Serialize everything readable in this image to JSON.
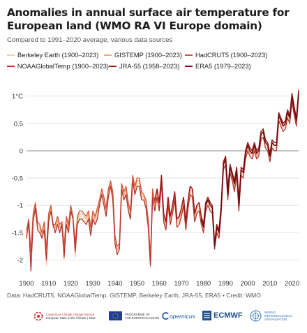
{
  "header": {
    "title": "Anomalies in annual surface air temperature for European land (WMO RA VI Europe domain)",
    "subtitle": "Compared to 1991–2020 average, various data sources"
  },
  "footer": {
    "source": "Data: HadCRUT5, NOAAGlobalTemp, GISTEMP, Berkeley Earth, JRA-55, ERA5 • Credit: WMO",
    "logos": {
      "c3s_line1": "Copernicus Climate Change Service",
      "c3s_line2": "European State of the Climate | 2023",
      "eu_line1": "PROGRAMME OF",
      "eu_line2": "THE EUROPEAN UNION",
      "copernicus": "opernicus",
      "ecmwf": "ECMWF",
      "wmo_line1": "WORLD",
      "wmo_line2": "METEOROLOGICAL",
      "wmo_line3": "ORGANIZATION"
    }
  },
  "colors": {
    "berkeley": "#f6cfa8",
    "gistemp": "#eda77a",
    "hadcrut": "#d4543a",
    "noaa": "#b5322c",
    "jra": "#9b1b1e",
    "era5": "#6b0b12"
  },
  "chart_data": {
    "type": "line",
    "title": "Anomalies in annual surface air temperature for European land (WMO RA VI Europe domain)",
    "subtitle": "Compared to 1991–2020 average, various data sources",
    "xlabel": "",
    "ylabel": "",
    "xlim": [
      1900,
      2023
    ],
    "ylim": [
      -2.3,
      1.2
    ],
    "xticks": [
      1900,
      1910,
      1920,
      1930,
      1940,
      1950,
      1960,
      1970,
      1980,
      1990,
      2000,
      2010,
      2020
    ],
    "yticks": [
      -2,
      -1.5,
      -1,
      -0.5,
      0,
      0.5,
      1
    ],
    "ytick_labels": [
      "-2",
      "-1.5",
      "-1",
      "-0.5",
      "0",
      "0.5",
      "1°C"
    ],
    "grid": "horizontal",
    "legend_position": "top",
    "series": [
      {
        "name": "Berkeley Earth (1900–2023)",
        "key": "berkeley",
        "start": 1900,
        "values": [
          -1.55,
          -1.3,
          -2.15,
          -1.25,
          -1.05,
          -1.4,
          -1.45,
          -1.55,
          -1.4,
          -2.1,
          -1.25,
          -1.05,
          -1.3,
          -1.45,
          -1.3,
          -1.45,
          -1.3,
          -2.0,
          -1.3,
          -1.45,
          -1.05,
          -1.2,
          -1.95,
          -1.3,
          -1.2,
          -1.2,
          -1.25,
          -1.3,
          -1.2,
          -1.5,
          -1.2,
          -1.3,
          -1.2,
          -0.95,
          -0.75,
          -0.95,
          -1.15,
          -0.8,
          -0.6,
          -0.85,
          -1.65,
          -1.85,
          -1.75,
          -0.65,
          -0.85,
          -0.75,
          -1.05,
          -1.2,
          -0.5,
          -0.75,
          -0.6,
          -0.6,
          -0.85,
          -0.85,
          -1.0,
          -1.35,
          -2.15,
          -0.8,
          -1.05,
          -0.8,
          -1.05,
          -0.55,
          -1.25,
          -1.4,
          -0.95,
          -1.3,
          -1.1,
          -0.85,
          -1.35,
          -1.3,
          -1.15,
          -0.95,
          -1.4,
          -1.0,
          -0.75,
          -0.8,
          -1.25,
          -1.1,
          -1.05,
          -1.3,
          -1.45,
          -1.05,
          -0.95,
          -1.05,
          -1.1,
          -1.8,
          -1.45,
          -1.55,
          -1.1,
          -0.3,
          -0.2,
          -0.85,
          -0.35,
          -0.5,
          -0.7,
          -0.4,
          -1.05,
          -0.4,
          -0.45,
          -0.1,
          0.05,
          -0.05,
          -0.1,
          0.05,
          -0.1,
          -0.05,
          0.25,
          0.3,
          0.1,
          0.05,
          -0.15,
          0.1,
          0.05,
          0.05,
          0.6,
          0.5,
          0.4,
          0.45,
          0.65,
          0.55,
          0.95,
          0.7,
          0.5,
          1.15
        ]
      },
      {
        "name": "GISTEMP (1900–2023)",
        "key": "gistemp",
        "start": 1900,
        "values": [
          -1.5,
          -1.35,
          -1.95,
          -1.2,
          -1.0,
          -1.35,
          -1.4,
          -1.6,
          -1.35,
          -1.9,
          -1.2,
          -1.0,
          -1.4,
          -1.4,
          -1.25,
          -1.4,
          -1.35,
          -1.85,
          -1.25,
          -1.4,
          -1.0,
          -1.25,
          -1.8,
          -1.25,
          -1.15,
          -1.15,
          -1.2,
          -1.25,
          -1.15,
          -1.45,
          -1.15,
          -1.25,
          -1.1,
          -0.95,
          -0.7,
          -0.9,
          -1.1,
          -0.75,
          -0.6,
          -0.8,
          -1.6,
          -1.8,
          -1.75,
          -0.65,
          -0.8,
          -0.7,
          -1.0,
          -1.15,
          -0.45,
          -0.7,
          -0.55,
          -0.55,
          -0.8,
          -0.85,
          -0.95,
          -1.3,
          -2.05,
          -0.75,
          -1.0,
          -0.75,
          -1.0,
          -0.5,
          -1.2,
          -1.35,
          -0.9,
          -1.25,
          -1.05,
          -0.8,
          -1.3,
          -1.25,
          -1.1,
          -0.9,
          -1.35,
          -0.95,
          -0.7,
          -0.75,
          -1.2,
          -1.05,
          -1.0,
          -1.25,
          -1.4,
          -1.0,
          -0.9,
          -1.0,
          -1.05,
          -1.75,
          -1.4,
          -1.5,
          -1.05,
          -0.25,
          -0.2,
          -0.8,
          -0.3,
          -0.45,
          -0.65,
          -0.35,
          -1.0,
          -0.35,
          -0.4,
          -0.05,
          0.1,
          -0.05,
          -0.05,
          0.05,
          -0.1,
          -0.05,
          0.3,
          0.35,
          0.15,
          0.1,
          -0.1,
          0.15,
          0.1,
          0.1,
          0.65,
          0.55,
          0.45,
          0.5,
          0.7,
          0.6,
          1.0,
          0.75,
          0.55,
          1.1
        ]
      },
      {
        "name": "HadCRUT5 (1900–2023)",
        "key": "hadcrut",
        "start": 1900,
        "values": [
          -1.45,
          -1.25,
          -1.85,
          -1.15,
          -0.95,
          -1.3,
          -1.35,
          -1.5,
          -1.3,
          -1.8,
          -1.15,
          -1.0,
          -1.35,
          -1.35,
          -1.2,
          -1.35,
          -1.3,
          -1.75,
          -1.2,
          -1.35,
          -1.0,
          -1.2,
          -1.7,
          -1.2,
          -1.1,
          -1.1,
          -1.15,
          -1.2,
          -1.1,
          -1.4,
          -1.1,
          -1.2,
          -1.05,
          -0.9,
          -0.7,
          -0.85,
          -1.05,
          -0.7,
          -0.55,
          -0.75,
          -1.55,
          -1.75,
          -1.7,
          -0.6,
          -0.75,
          -0.65,
          -0.95,
          -1.1,
          -0.45,
          -0.65,
          -0.5,
          -0.5,
          -0.75,
          -0.8,
          -0.9,
          -1.25,
          -1.95,
          -0.7,
          -0.95,
          -0.7,
          -0.95,
          -0.45,
          -1.15,
          -1.3,
          -0.85,
          -1.2,
          -1.0,
          -0.75,
          -1.25,
          -1.2,
          -1.05,
          -0.85,
          -1.3,
          -0.9,
          -0.65,
          -0.7,
          -1.15,
          -1.0,
          -0.95,
          -1.2,
          -1.35,
          -0.95,
          -0.85,
          -0.95,
          -1.0,
          -1.7,
          -1.35,
          -1.45,
          -1.0,
          -0.25,
          -0.15,
          -0.75,
          -0.3,
          -0.45,
          -0.6,
          -0.35,
          -0.95,
          -0.35,
          -0.4,
          -0.05,
          0.1,
          0.0,
          -0.05,
          0.1,
          -0.05,
          0.0,
          0.3,
          0.35,
          0.15,
          0.1,
          -0.1,
          0.15,
          0.1,
          0.1,
          0.65,
          0.55,
          0.45,
          0.5,
          0.7,
          0.6,
          1.0,
          0.75,
          0.55,
          1.05
        ]
      },
      {
        "name": "NOAAGlobalTemp (1900–2023)",
        "key": "noaa",
        "start": 1900,
        "values": [
          -1.6,
          -1.3,
          -2.2,
          -1.3,
          -1.05,
          -1.45,
          -1.5,
          -1.6,
          -1.45,
          -2.0,
          -1.3,
          -1.1,
          -1.35,
          -1.5,
          -1.35,
          -1.5,
          -1.35,
          -1.95,
          -1.35,
          -1.5,
          -1.1,
          -1.25,
          -1.85,
          -1.35,
          -1.25,
          -1.25,
          -1.3,
          -1.35,
          -1.25,
          -1.55,
          -1.25,
          -1.35,
          -1.25,
          -1.0,
          -0.8,
          -1.0,
          -1.2,
          -0.85,
          -0.65,
          -0.9,
          -1.7,
          -1.9,
          -1.8,
          -0.7,
          -0.9,
          -0.8,
          -1.1,
          -1.25,
          -0.55,
          -0.8,
          -0.65,
          -0.65,
          -0.9,
          -0.9,
          -1.05,
          -1.4,
          -2.1,
          -0.85,
          -1.1,
          -0.85,
          -1.1,
          -0.6,
          -1.3,
          -1.45,
          -1.0,
          -1.35,
          -1.15,
          -0.9,
          -1.4,
          -1.35,
          -1.2,
          -1.0,
          -1.45,
          -1.05,
          -0.8,
          -0.85,
          -1.3,
          -1.15,
          -1.1,
          -1.35,
          -1.5,
          -1.1,
          -1.0,
          -1.1,
          -1.15,
          -1.8,
          -1.5,
          -1.6,
          -1.15,
          -0.35,
          -0.25,
          -0.9,
          -0.4,
          -0.55,
          -0.75,
          -0.45,
          -1.1,
          -0.45,
          -0.5,
          -0.15,
          0.0,
          -0.1,
          -0.15,
          0.0,
          -0.15,
          -0.1,
          0.2,
          0.25,
          0.05,
          0.0,
          -0.2,
          0.05,
          0.0,
          0.0,
          0.55,
          0.45,
          0.35,
          0.4,
          0.6,
          0.5,
          0.9,
          0.65,
          0.45,
          1.0
        ]
      },
      {
        "name": "JRA-55 (1958–2023)",
        "key": "jra",
        "start": 1958,
        "values": [
          -0.9,
          -0.7,
          -0.95,
          -0.45,
          -1.15,
          -1.3,
          -0.85,
          -1.2,
          -1.0,
          -0.75,
          -1.25,
          -1.2,
          -1.05,
          -0.85,
          -1.3,
          -0.9,
          -0.65,
          -0.7,
          -1.15,
          -1.0,
          -0.95,
          -1.2,
          -1.35,
          -0.95,
          -0.85,
          -0.95,
          -1.0,
          -1.7,
          -1.35,
          -1.45,
          -1.0,
          -0.2,
          -0.1,
          -0.7,
          -0.25,
          -0.4,
          -0.55,
          -0.3,
          -0.9,
          -0.3,
          -0.35,
          0.0,
          0.15,
          0.05,
          0.0,
          0.15,
          0.0,
          0.05,
          0.35,
          0.4,
          0.2,
          0.15,
          -0.05,
          0.2,
          0.15,
          0.15,
          0.7,
          0.6,
          0.5,
          0.55,
          0.75,
          0.65,
          1.05,
          0.8,
          0.6,
          1.1
        ]
      },
      {
        "name": "ERA5 (1979–2023)",
        "key": "era5",
        "start": 1979,
        "values": [
          -1.25,
          -1.4,
          -1.0,
          -0.9,
          -1.0,
          -1.05,
          -1.75,
          -1.4,
          -1.5,
          -1.05,
          -0.25,
          -0.15,
          -0.8,
          -0.3,
          -0.45,
          -0.6,
          -0.35,
          -1.0,
          -0.35,
          -0.4,
          -0.05,
          0.1,
          0.0,
          -0.05,
          0.1,
          -0.05,
          0.0,
          0.3,
          0.35,
          0.15,
          0.1,
          -0.1,
          0.15,
          0.1,
          0.1,
          0.65,
          0.55,
          0.45,
          0.5,
          0.7,
          0.6,
          1.0,
          0.75,
          0.55,
          1.05
        ]
      }
    ]
  }
}
